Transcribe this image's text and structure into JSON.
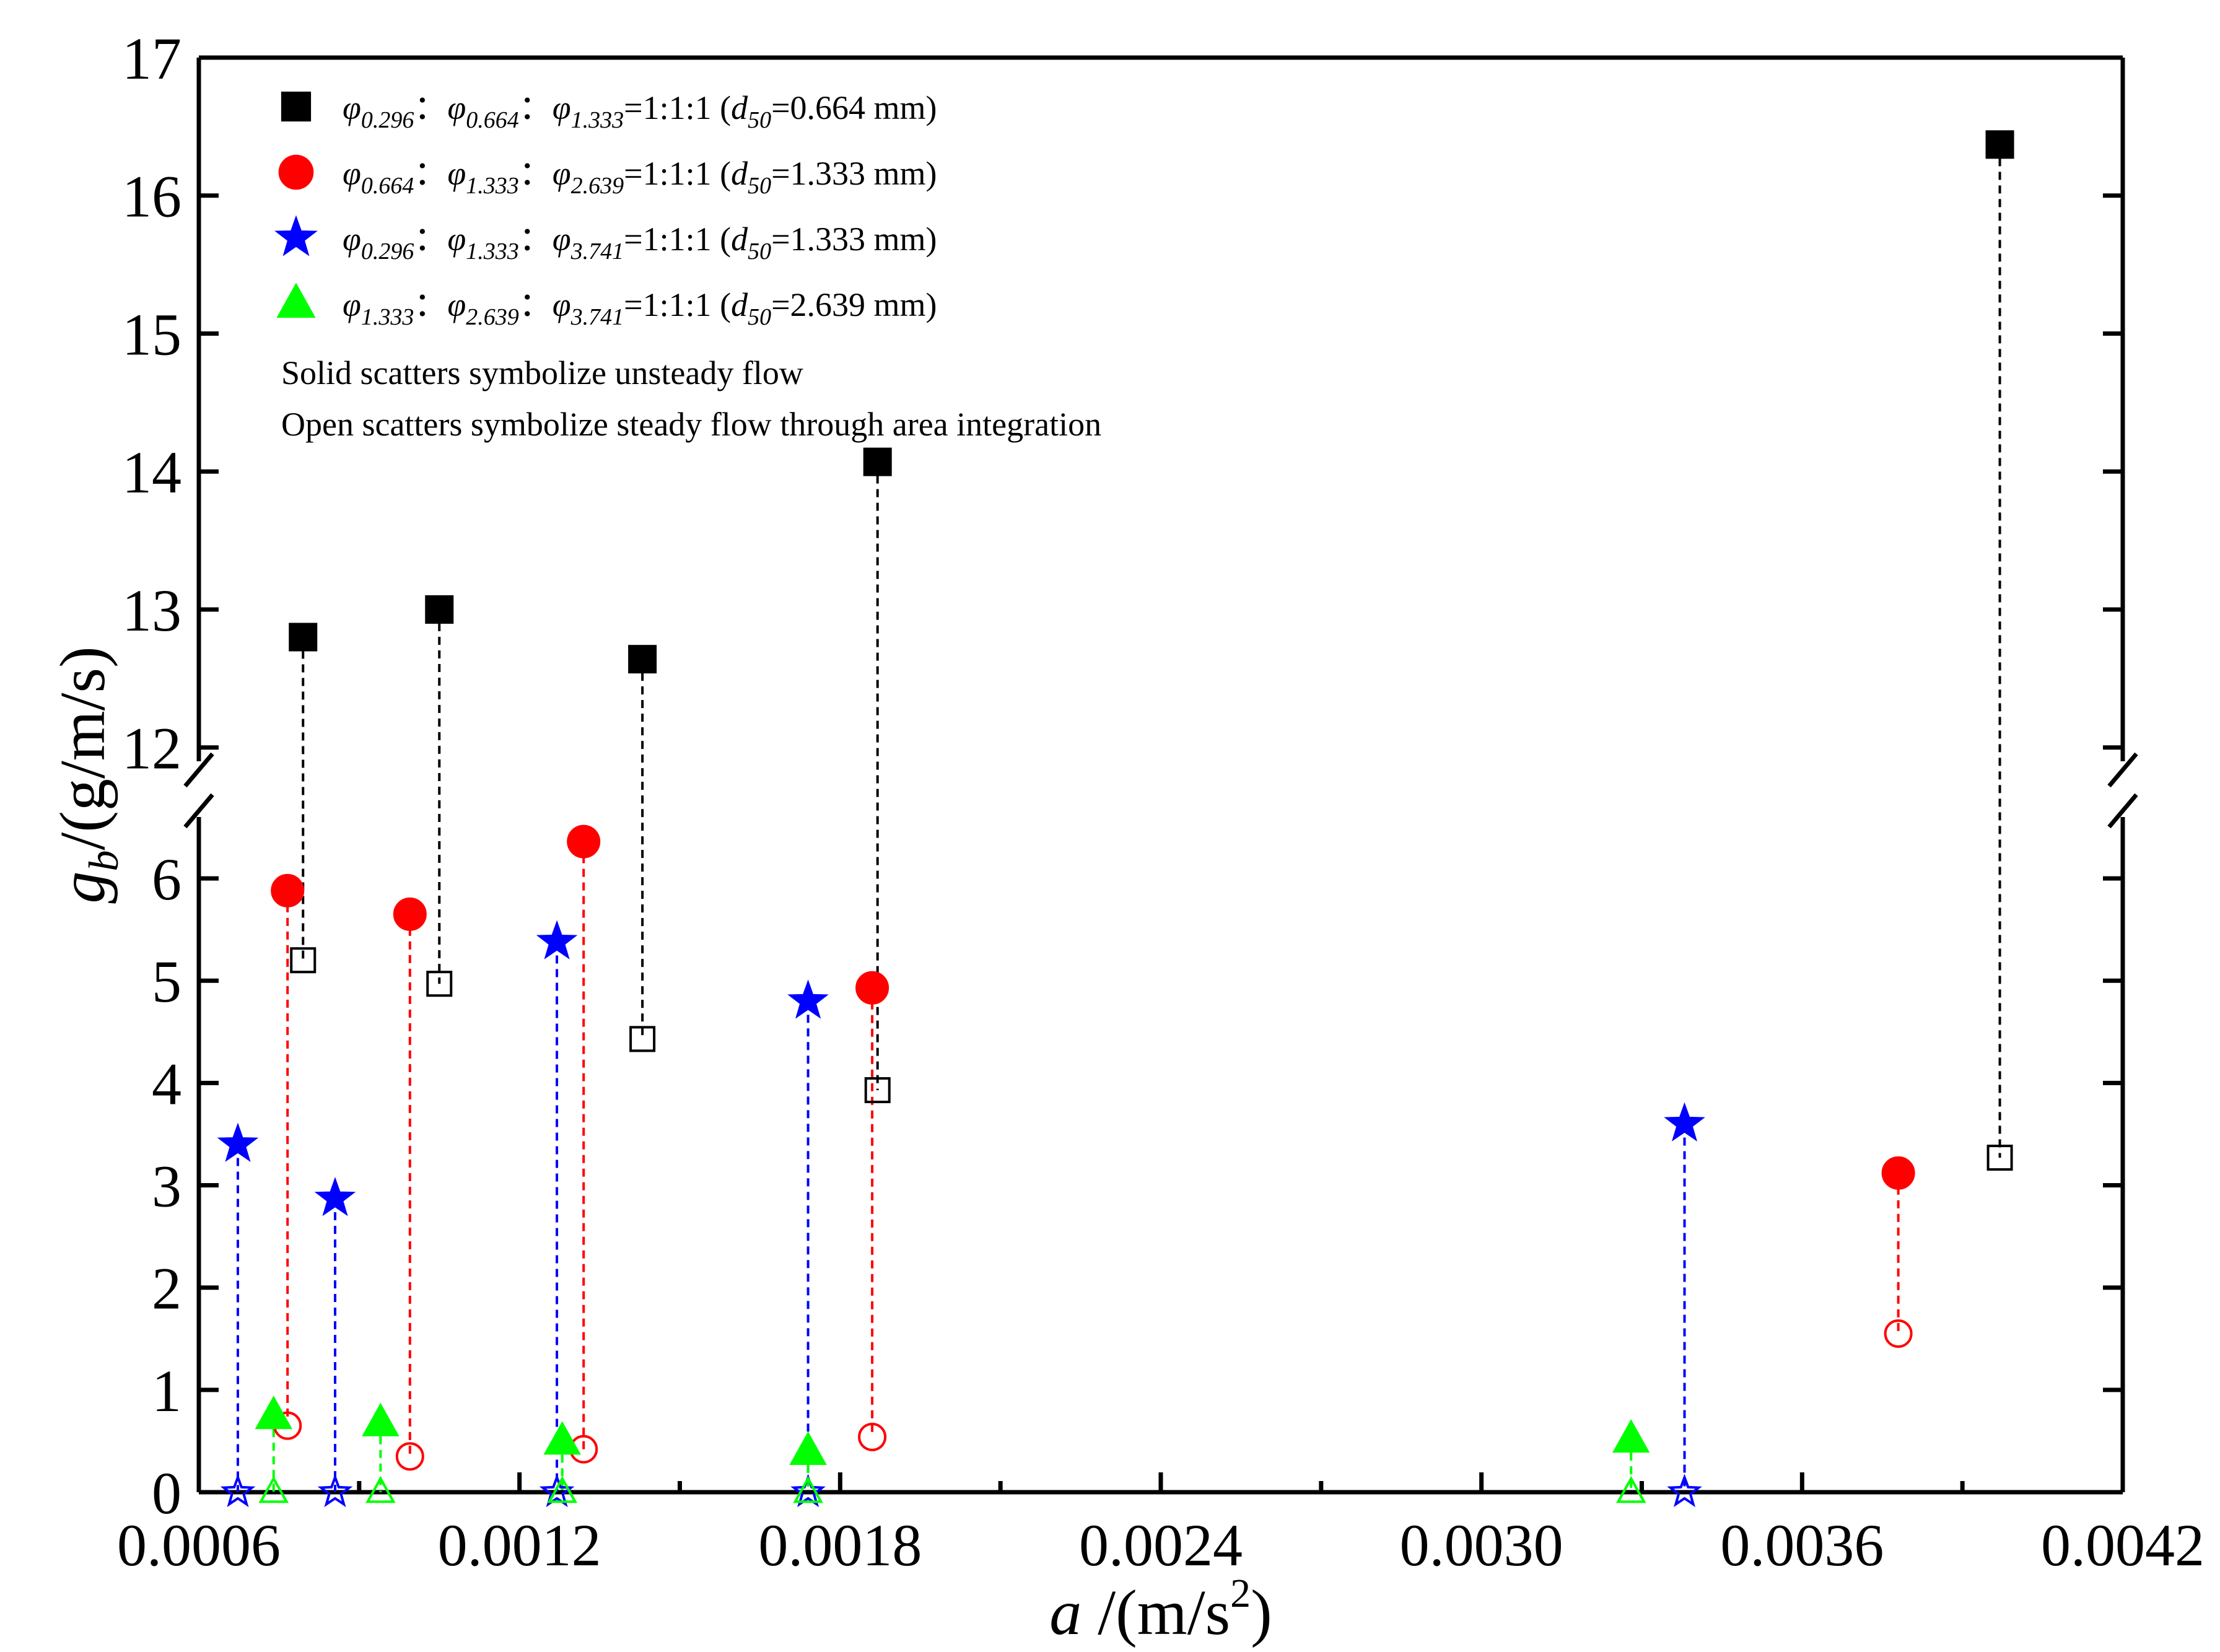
{
  "chart_data": {
    "type": "scatter",
    "title": "",
    "xlabel": {
      "main": "a",
      "unit_prefix": " /(m/s",
      "unit_sup": "2",
      "unit_suffix": ")"
    },
    "ylabel": {
      "main": "g",
      "sub": "b",
      "unit": "/(g/m/s)"
    },
    "xlim": [
      0.0006,
      0.0042
    ],
    "x_ticks": [
      "0.0006",
      "0.0012",
      "0.0018",
      "0.0024",
      "0.0030",
      "0.0036",
      "0.0042"
    ],
    "y_lower_range": [
      0,
      6.6
    ],
    "y_upper_range": [
      11.9,
      17
    ],
    "y_ticks_lower": [
      "0",
      "1",
      "2",
      "3",
      "4",
      "5",
      "6"
    ],
    "y_ticks_upper": [
      "12",
      "13",
      "14",
      "15",
      "16",
      "17"
    ],
    "axis_break": "between 6.6 and 11.9 on the y-axis",
    "legend_placement": "top-left",
    "series": [
      {
        "name": "φ0.296 : φ0.664 : φ1.333 =1:1:1 (d50=0.664 mm)",
        "marker": "square",
        "color": "#000000",
        "points": [
          {
            "x": 0.000795,
            "unsteady": 12.8,
            "steady": 5.2
          },
          {
            "x": 0.00105,
            "unsteady": 13.0,
            "steady": 4.97
          },
          {
            "x": 0.00143,
            "unsteady": 12.64,
            "steady": 4.43
          },
          {
            "x": 0.00187,
            "unsteady": 14.07,
            "steady": 3.93
          },
          {
            "x": 0.00397,
            "unsteady": 16.37,
            "steady": 3.27
          }
        ]
      },
      {
        "name": "φ0.664 : φ1.333 : φ2.639 =1:1:1 (d50=1.333 mm)",
        "marker": "circle",
        "color": "#ff0000",
        "points": [
          {
            "x": 0.000766,
            "unsteady": 5.88,
            "steady": 0.65
          },
          {
            "x": 0.000995,
            "unsteady": 5.65,
            "steady": 0.35
          },
          {
            "x": 0.00132,
            "unsteady": 6.36,
            "steady": 0.42
          },
          {
            "x": 0.00186,
            "unsteady": 4.93,
            "steady": 0.54
          },
          {
            "x": 0.00378,
            "unsteady": 3.12,
            "steady": 1.55
          }
        ]
      },
      {
        "name": "φ0.296 : φ1.333 : φ3.741 =1:1:1 (d50=1.333 mm)",
        "marker": "star",
        "color": "#0000ff",
        "points": [
          {
            "x": 0.000673,
            "unsteady": 3.4,
            "steady": 0.0
          },
          {
            "x": 0.000855,
            "unsteady": 2.87,
            "steady": 0.0
          },
          {
            "x": 0.00127,
            "unsteady": 5.38,
            "steady": 0.0
          },
          {
            "x": 0.00174,
            "unsteady": 4.8,
            "steady": 0.0
          },
          {
            "x": 0.00338,
            "unsteady": 3.6,
            "steady": 0.0
          }
        ]
      },
      {
        "name": "φ1.333 : φ2.639 : φ3.741 =1:1:1 (d50=2.639 mm)",
        "marker": "triangle",
        "color": "#00ff00",
        "points": [
          {
            "x": 0.00074,
            "unsteady": 0.75,
            "steady": 0.0
          },
          {
            "x": 0.00094,
            "unsteady": 0.68,
            "steady": 0.0
          },
          {
            "x": 0.00128,
            "unsteady": 0.5,
            "steady": 0.0
          },
          {
            "x": 0.00174,
            "unsteady": 0.4,
            "steady": 0.0
          },
          {
            "x": 0.00328,
            "unsteady": 0.52,
            "steady": 0.0
          }
        ]
      }
    ],
    "legend": [
      {
        "marker": "square",
        "color": "#000000",
        "parts": [
          [
            "φ",
            "0.296",
            "："
          ],
          [
            "φ",
            "0.664",
            "："
          ],
          [
            "φ",
            "1.333",
            "=1:1:1 ("
          ]
        ],
        "d_sub": "50",
        "d_value": "=0.664 mm)"
      },
      {
        "marker": "circle",
        "color": "#ff0000",
        "parts": [
          [
            "φ",
            "0.664",
            "："
          ],
          [
            "φ",
            "1.333",
            "："
          ],
          [
            "φ",
            "2.639",
            "=1:1:1 ("
          ]
        ],
        "d_sub": "50",
        "d_value": "=1.333 mm)"
      },
      {
        "marker": "star",
        "color": "#0000ff",
        "parts": [
          [
            "φ",
            "0.296",
            "："
          ],
          [
            "φ",
            "1.333",
            "："
          ],
          [
            "φ",
            "3.741",
            "=1:1:1 ("
          ]
        ],
        "d_sub": "50",
        "d_value": "=1.333 mm)"
      },
      {
        "marker": "triangle",
        "color": "#00ff00",
        "parts": [
          [
            "φ",
            "1.333",
            "："
          ],
          [
            "φ",
            "2.639",
            "："
          ],
          [
            "φ",
            "3.741",
            "=1:1:1 ("
          ]
        ],
        "d_sub": "50",
        "d_value": "=2.639 mm)"
      }
    ],
    "notes": [
      "Solid scatters symbolize unsteady flow",
      "Open scatters symbolize steady flow through area integration"
    ]
  }
}
